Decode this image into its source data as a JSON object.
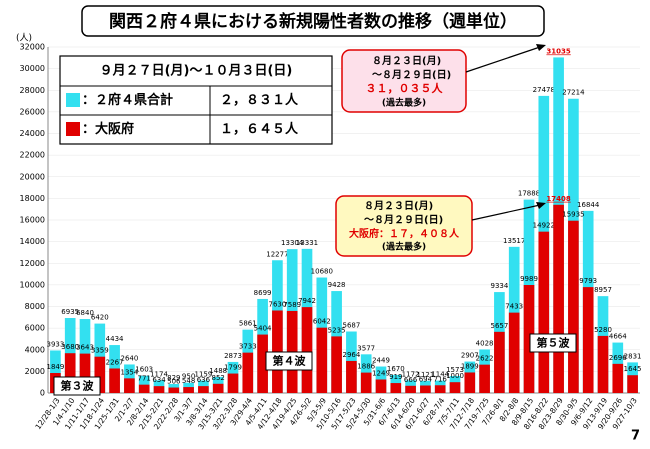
{
  "chart_data": {
    "type": "bar",
    "title": "関西２府４県における新規陽性者数の推移（週単位）",
    "y_unit": "(人)",
    "categories": [
      "12/28-1/3",
      "1/4-1/10",
      "1/11-1/17",
      "1/18-1/24",
      "1/25-1/31",
      "2/1-2/7",
      "2/8-2/14",
      "2/15-2/21",
      "2/22-2/28",
      "3/1-3/7",
      "3/8-3/14",
      "3/15-3/21",
      "3/22-3/28",
      "3/29-4/4",
      "4/5-4/11",
      "4/12-4/18",
      "4/19-4/25",
      "4/26-5/2",
      "5/3-5/9",
      "5/10-5/16",
      "5/17-5/23",
      "5/24-5/30",
      "5/31-6/6",
      "6/7-6/13",
      "6/14-6/20",
      "6/21-6/27",
      "6/28-7/4",
      "7/5-7/11",
      "7/12-7/18",
      "7/19-7/25",
      "7/26-8/1",
      "8/2-8/8",
      "8/9-8/15",
      "8/16-8/22",
      "8/23-8/29",
      "8/30-9/5",
      "9/6-9/12",
      "9/13-9/19",
      "9/20-9/26",
      "9/27-10/3"
    ],
    "series": [
      {
        "name": "：２府４県合計",
        "color": "#33e0f0",
        "values": [
          3933,
          6935,
          6840,
          6420,
          4434,
          2640,
          1603,
          1174,
          829,
          950,
          1159,
          1488,
          2873,
          5861,
          8699,
          12277,
          13304,
          13331,
          10680,
          9428,
          5687,
          3577,
          2449,
          1670,
          1172,
          1121,
          1144,
          1573,
          2907,
          4028,
          9334,
          13517,
          17888,
          27478,
          31035,
          27214,
          16844,
          8957,
          4664,
          2831
        ]
      },
      {
        "name": "：大阪府",
        "color": "#e00000",
        "values": [
          1849,
          3680,
          3643,
          3359,
          2267,
          1354,
          771,
          634,
          506,
          548,
          636,
          852,
          1799,
          3733,
          5404,
          7630,
          7589,
          7942,
          6042,
          5235,
          2964,
          1886,
          1249,
          919,
          666,
          694,
          716,
          1000,
          1899,
          2622,
          5657,
          7433,
          9989,
          14922,
          17408,
          15935,
          9793,
          5280,
          2696,
          1645
        ]
      }
    ],
    "ylim": [
      0,
      32000
    ],
    "yticks": [
      0,
      2000,
      4000,
      6000,
      8000,
      10000,
      12000,
      14000,
      16000,
      18000,
      20000,
      22000,
      24000,
      26000,
      28000,
      30000,
      32000
    ],
    "legend": {
      "period": "９月２７日(月)～１０月３日(日)",
      "totals": [
        "２，８３１人",
        "１，６４５人"
      ]
    },
    "callouts": [
      {
        "lines": [
          "８月２３日(月)",
          "～８月２９日(日)",
          "３１，０３５人",
          "(過去最多)"
        ]
      },
      {
        "lines": [
          "８月２３日(月)",
          "～８月２９日(日)",
          "大阪府：１７，４０８人",
          "(過去最多)"
        ]
      }
    ],
    "waves": [
      "第３波",
      "第４波",
      "第５波"
    ],
    "page_number": "7"
  }
}
